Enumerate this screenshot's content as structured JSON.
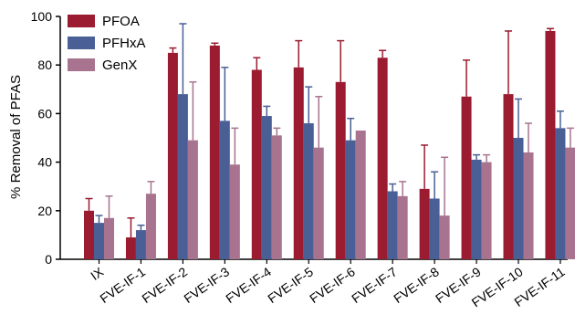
{
  "chart_data": {
    "type": "bar",
    "ylabel": "% Removal of PFAS",
    "xlabel": "",
    "ylim": [
      0,
      100
    ],
    "yticks": [
      0,
      20,
      40,
      60,
      80,
      100
    ],
    "grid": false,
    "legend_position": "top-left",
    "categories": [
      "IX",
      "FVE-IF-1",
      "FVE-IF-2",
      "FVE-IF-3",
      "FVE-IF-4",
      "FVE-IF-5",
      "FVE-IF-6",
      "FVE-IF-7",
      "FVE-IF-8",
      "FVE-IF-9",
      "FVE-IF-10",
      "FVE-IF-11"
    ],
    "series": [
      {
        "name": "PFOA",
        "color": "#9b1b30",
        "values": [
          20,
          9,
          85,
          88,
          78,
          79,
          73,
          83,
          29,
          67,
          68,
          94
        ],
        "error_upper": [
          25,
          17,
          87,
          89,
          83,
          90,
          90,
          86,
          47,
          82,
          94,
          95
        ]
      },
      {
        "name": "PFHxA",
        "color": "#4a5f95",
        "values": [
          15,
          12,
          68,
          57,
          59,
          56,
          49,
          28,
          25,
          41,
          50,
          54
        ],
        "error_upper": [
          18,
          14,
          97,
          79,
          63,
          71,
          58,
          31,
          36,
          43,
          66,
          61
        ]
      },
      {
        "name": "GenX",
        "color": "#a8738e",
        "values": [
          17,
          27,
          49,
          39,
          51,
          46,
          53,
          26,
          18,
          40,
          44,
          46
        ],
        "error_upper": [
          26,
          32,
          73,
          54,
          54,
          67,
          53,
          32,
          42,
          43,
          56,
          54
        ]
      }
    ]
  }
}
